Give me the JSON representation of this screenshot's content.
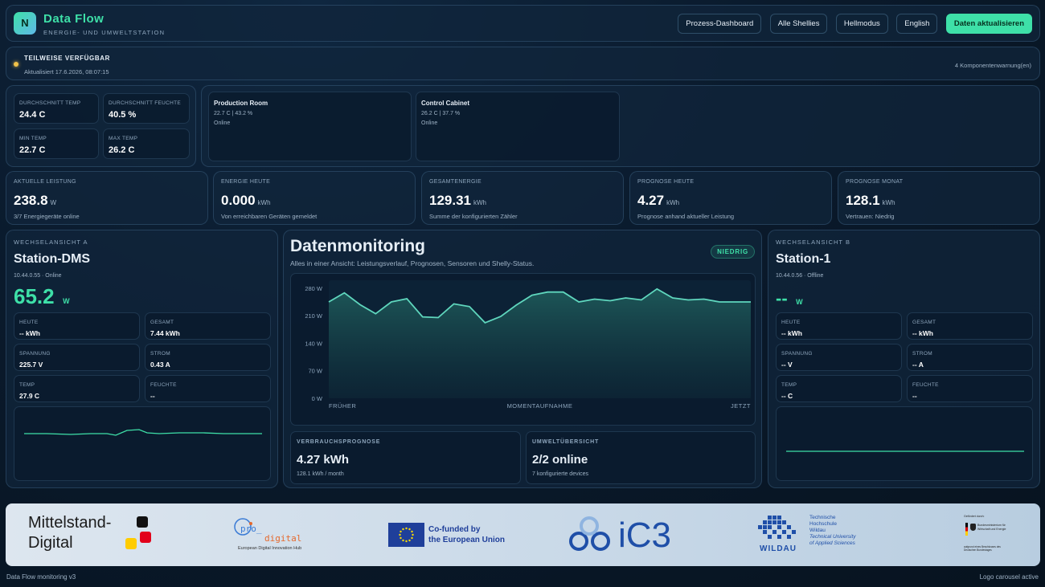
{
  "app": {
    "logo_letter": "N",
    "title": "Data Flow",
    "subtitle": "ENERGIE- UND UMWELTSTATION"
  },
  "nav": {
    "buttons": [
      "Prozess-Dashboard",
      "Alle Shellies",
      "Hellmodus",
      "English"
    ],
    "refresh": "Daten aktualisieren"
  },
  "status": {
    "title": "TEILWEISE VERFÜGBAR",
    "updated": "Aktualisiert 17.6.2026, 08:07:15",
    "warnings": "4 Komponentenwarnung(en)"
  },
  "summary": {
    "avg_temp_label": "DURCHSCHNITT TEMP",
    "avg_temp": "24.4 C",
    "avg_hum_label": "DURCHSCHNITT FEUCHTE",
    "avg_hum": "40.5 %",
    "min_temp_label": "MIN TEMP",
    "min_temp": "22.7 C",
    "max_temp_label": "MAX TEMP",
    "max_temp": "26.2 C"
  },
  "rooms": [
    {
      "name": "Production Room",
      "values": "22.7 C | 43.2 %",
      "status": "Online"
    },
    {
      "name": "Control Cabinet",
      "values": "26.2 C | 37.7 %",
      "status": "Online"
    }
  ],
  "metrics": [
    {
      "label": "AKTUELLE LEISTUNG",
      "value": "238.8",
      "unit": "W",
      "note": "3/7 Energiegeräte online"
    },
    {
      "label": "ENERGIE HEUTE",
      "value": "0.000",
      "unit": "kWh",
      "note": "Von erreichbaren Geräten gemeldet"
    },
    {
      "label": "GESAMTENERGIE",
      "value": "129.31",
      "unit": "kWh",
      "note": "Summe der konfigurierten Zähler"
    },
    {
      "label": "PROGNOSE HEUTE",
      "value": "4.27",
      "unit": "kWh",
      "note": "Prognose anhand aktueller Leistung"
    },
    {
      "label": "PROGNOSE MONAT",
      "value": "128.1",
      "unit": "kWh",
      "note": "Vertrauen: Niedrig"
    }
  ],
  "station_a": {
    "section": "WECHSELANSICHT A",
    "name": "Station-DMS",
    "meta": "10.44.0.55 · Online",
    "power": "65.2",
    "power_unit": "W",
    "cells": [
      {
        "label": "HEUTE",
        "value": "-- kWh"
      },
      {
        "label": "GESAMT",
        "value": "7.44 kWh"
      },
      {
        "label": "SPANNUNG",
        "value": "225.7 V"
      },
      {
        "label": "STROM",
        "value": "0.43 A"
      },
      {
        "label": "TEMP",
        "value": "27.9 C"
      },
      {
        "label": "FEUCHTE",
        "value": "--"
      }
    ]
  },
  "station_b": {
    "section": "WECHSELANSICHT B",
    "name": "Station-1",
    "meta": "10.44.0.56 · Offline",
    "power": "--",
    "power_unit": "W",
    "cells": [
      {
        "label": "HEUTE",
        "value": "-- kWh"
      },
      {
        "label": "GESAMT",
        "value": "-- kWh"
      },
      {
        "label": "SPANNUNG",
        "value": "-- V"
      },
      {
        "label": "STROM",
        "value": "-- A"
      },
      {
        "label": "TEMP",
        "value": "-- C"
      },
      {
        "label": "FEUCHTE",
        "value": "--"
      }
    ]
  },
  "monitor": {
    "title": "Datenmonitoring",
    "subtitle": "Alles in einer Ansicht: Leistungsverlauf, Prognosen, Sensoren und Shelly-Status.",
    "badge": "NIEDRIG",
    "forecast_label": "VERBRAUCHSPROGNOSE",
    "forecast_value": "4.27 kWh",
    "forecast_note": "128.1 kWh / month",
    "env_label": "UMWELTÜBERSICHT",
    "env_value": "2/2 online",
    "env_note": "7 konfigurierte devices"
  },
  "chart_data": {
    "type": "area",
    "y_ticks": [
      "280 W",
      "210 W",
      "140 W",
      "70 W",
      "0 W"
    ],
    "x_labels": [
      "FRÜHER",
      "MOMENTAUFNAHME",
      "JETZT"
    ],
    "ylim": [
      0,
      300
    ],
    "values": [
      245,
      268,
      238,
      215,
      245,
      253,
      207,
      205,
      240,
      233,
      192,
      208,
      237,
      262,
      270,
      270,
      245,
      252,
      248,
      255,
      250,
      278,
      255,
      250,
      252,
      245,
      245,
      245
    ],
    "line_color": "#5fd6bd",
    "fill_color": "#1e5a5a"
  },
  "colors": {
    "accent": "#3ee0a8",
    "status_dot": "#f0c24a"
  },
  "logos": {
    "mittelstand_line1": "Mittelstand-",
    "mittelstand_line2": "Digital",
    "prodigital_a": "pro_",
    "prodigital_b": "digital",
    "prodigital_sub": "European Digital Innovation Hub",
    "eu_text1": "Co-funded by",
    "eu_text2": "the European Union",
    "ic3": "iC3",
    "wildau_de1": "Technische",
    "wildau_de2": "Hochschule",
    "wildau_de3": "Wildau",
    "wildau_en1": "Technical University",
    "wildau_en2": "of Applied Sciences",
    "wildau_word": "WILDAU",
    "bmwk_top": "Gefördert durch:",
    "bmwk_name": "Bundesministerium für Wirtschaft und Energie",
    "bmwk_bottom": "aufgrund eines Beschlusses des Deutschen Bundestages"
  },
  "footer": {
    "left": "Data Flow monitoring v3",
    "right": "Logo carousel active"
  }
}
